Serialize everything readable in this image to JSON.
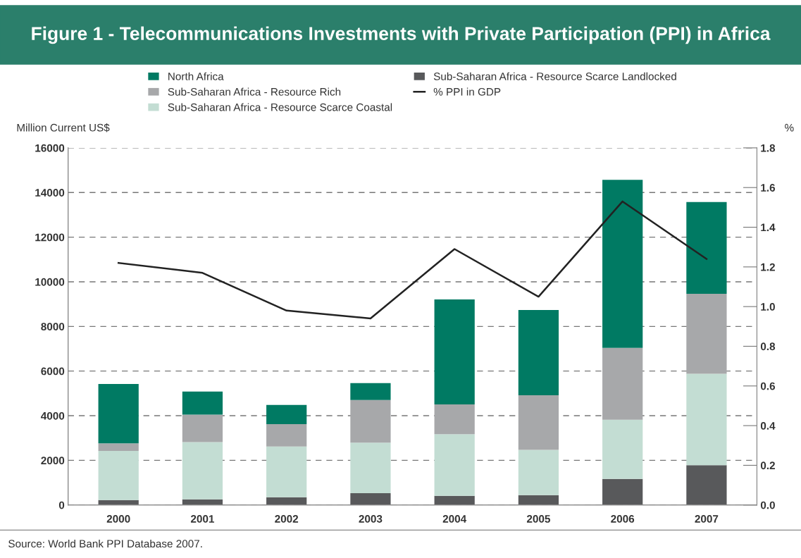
{
  "chart_data": {
    "type": "bar",
    "title": "Figure 1 - Telecommunications Investments with Private Participation (PPI) in Africa",
    "ylabel": "Million Current US$",
    "y2label": "%",
    "categories": [
      "2000",
      "2001",
      "2002",
      "2003",
      "2004",
      "2005",
      "2006",
      "2007"
    ],
    "stacked": true,
    "series": [
      {
        "name": "Sub-Saharan Africa - Resource Scarce Landlocked",
        "color": "#58595b",
        "values": [
          220,
          250,
          350,
          530,
          410,
          440,
          1170,
          1780
        ]
      },
      {
        "name": "Sub-Saharan Africa - Resource Scarce Coastal",
        "color": "#c3ddd3",
        "values": [
          2200,
          2570,
          2270,
          2260,
          2760,
          2030,
          2650,
          4100
        ]
      },
      {
        "name": "Sub-Saharan Africa - Resource Rich",
        "color": "#a7a8aa",
        "values": [
          340,
          1230,
          1000,
          1910,
          1340,
          2450,
          3220,
          3580
        ]
      },
      {
        "name": "North Africa",
        "color": "#007a63",
        "values": [
          2660,
          1030,
          860,
          760,
          4700,
          3820,
          7530,
          4110
        ]
      },
      {
        "name": "% PPI in GDP",
        "type": "line",
        "axis": "y2",
        "color": "#222222",
        "values": [
          1.22,
          1.17,
          0.98,
          0.94,
          1.29,
          1.05,
          1.53,
          1.24
        ]
      }
    ],
    "ylim": [
      0,
      16000
    ],
    "yticks": [
      0,
      2000,
      4000,
      6000,
      8000,
      10000,
      12000,
      14000,
      16000
    ],
    "y2lim": [
      0,
      1.8
    ],
    "y2ticks": [
      {
        "value": 0,
        "label": "0.0"
      },
      0.2,
      0.4,
      0.6,
      0.8,
      {
        "value": 1,
        "label": "1.0"
      },
      1.2,
      1.4,
      1.6,
      1.8
    ],
    "grid": "y",
    "legend": "top",
    "marker": "none",
    "line_style": "solid",
    "annotations": [
      "Source: World Bank PPI Database 2007."
    ]
  }
}
